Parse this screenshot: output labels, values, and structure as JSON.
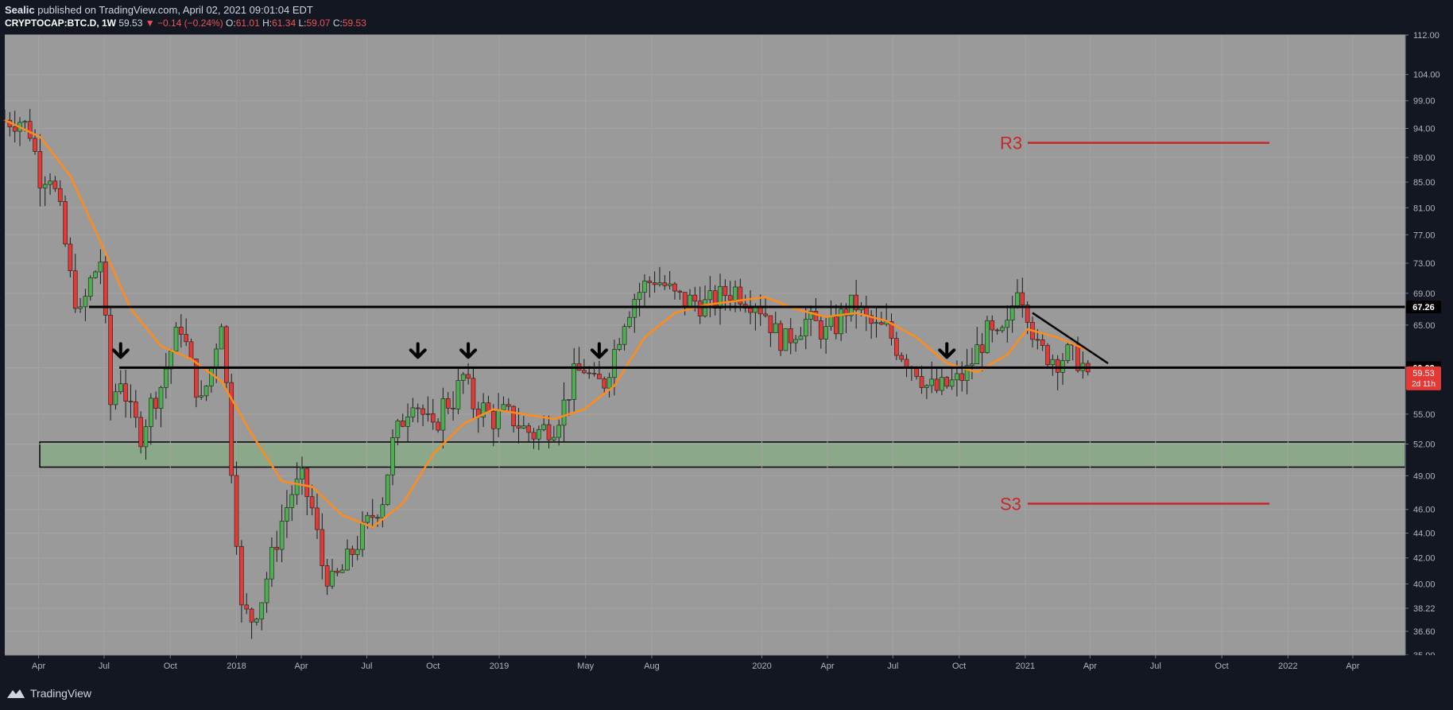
{
  "header": {
    "author": "Sealic",
    "published_text": "published on TradingView.com, April 02, 2021 09:01:04 EDT"
  },
  "ticker": {
    "symbol": "CRYPTOCAP:BTC.D, 1W",
    "last": "59.53",
    "change": "−0.14 (−0.24%)",
    "o_label": "O:",
    "o": "61.01",
    "h_label": "H:",
    "h": "61.34",
    "l_label": "L:",
    "l": "59.07",
    "c_label": "C:",
    "c": "59.53"
  },
  "footer": {
    "brand": "TradingView"
  },
  "colors": {
    "page_bg": "#131722",
    "plot_bg": "#9a9a9a",
    "up_candle": "#4caf50",
    "down_candle": "#e53935",
    "ma_line": "#ff8c1a",
    "level_line": "#000000",
    "zone_fill": "#8ca88a",
    "r_s_color": "#c62828",
    "price_badge": "#e53935"
  },
  "chart_data": {
    "type": "candlestick",
    "symbol": "CRYPTOCAP:BTC.D",
    "interval": "1W",
    "y_scale": "log",
    "ylim": [
      35,
      112
    ],
    "y_ticks": [
      112,
      104,
      99,
      94,
      89,
      85,
      81,
      77,
      73,
      69,
      65,
      60,
      55,
      52,
      49,
      46,
      44,
      42,
      40,
      38.22,
      36.6,
      35
    ],
    "y_tick_labels": [
      "112.00",
      "104.00",
      "99.00",
      "94.00",
      "89.00",
      "85.00",
      "81.00",
      "77.00",
      "73.00",
      "69.00",
      "65.00",
      "60.00",
      "55.00",
      "52.00",
      "49.00",
      "46.00",
      "44.00",
      "42.00",
      "40.00",
      "38.22",
      "36.60",
      "35.00"
    ],
    "x_range": [
      "2017-02-13",
      "2022-06-13"
    ],
    "x_ticks": [
      {
        "date": "2017-04-01",
        "label": "Apr"
      },
      {
        "date": "2017-07-01",
        "label": "Jul"
      },
      {
        "date": "2017-10-01",
        "label": "Oct"
      },
      {
        "date": "2018-01-01",
        "label": "2018"
      },
      {
        "date": "2018-04-01",
        "label": "Apr"
      },
      {
        "date": "2018-07-01",
        "label": "Jul"
      },
      {
        "date": "2018-10-01",
        "label": "Oct"
      },
      {
        "date": "2019-01-01",
        "label": "2019"
      },
      {
        "date": "2019-05-01",
        "label": "May"
      },
      {
        "date": "2019-08-01",
        "label": "Aug"
      },
      {
        "date": "2020-01-01",
        "label": "2020"
      },
      {
        "date": "2020-04-01",
        "label": "Apr"
      },
      {
        "date": "2020-07-01",
        "label": "Jul"
      },
      {
        "date": "2020-10-01",
        "label": "Oct"
      },
      {
        "date": "2021-01-01",
        "label": "2021"
      },
      {
        "date": "2021-04-01",
        "label": "Apr"
      },
      {
        "date": "2021-07-01",
        "label": "Jul"
      },
      {
        "date": "2021-10-01",
        "label": "Oct"
      },
      {
        "date": "2022-01-01",
        "label": "2022"
      },
      {
        "date": "2022-04-01",
        "label": "Apr"
      }
    ],
    "close_series": [
      [
        "2017-02-13",
        95.5
      ],
      [
        "2017-03-06",
        95.5
      ],
      [
        "2017-03-20",
        93.5
      ],
      [
        "2017-04-03",
        86
      ],
      [
        "2017-04-17",
        86.5
      ],
      [
        "2017-05-01",
        80
      ],
      [
        "2017-05-15",
        71
      ],
      [
        "2017-05-29",
        66
      ],
      [
        "2017-06-12",
        70.5
      ],
      [
        "2017-06-26",
        73.5
      ],
      [
        "2017-07-10",
        56
      ],
      [
        "2017-07-24",
        59
      ],
      [
        "2017-08-07",
        55
      ],
      [
        "2017-08-21",
        53
      ],
      [
        "2017-09-04",
        56
      ],
      [
        "2017-09-18",
        58
      ],
      [
        "2017-10-02",
        62
      ],
      [
        "2017-10-16",
        65
      ],
      [
        "2017-10-30",
        60
      ],
      [
        "2017-11-13",
        56
      ],
      [
        "2017-11-27",
        60
      ],
      [
        "2017-12-11",
        66
      ],
      [
        "2017-12-25",
        50
      ],
      [
        "2018-01-08",
        38
      ],
      [
        "2018-01-22",
        37.5
      ],
      [
        "2018-02-05",
        39
      ],
      [
        "2018-02-19",
        42
      ],
      [
        "2018-03-05",
        45
      ],
      [
        "2018-03-19",
        47.5
      ],
      [
        "2018-04-02",
        48.5
      ],
      [
        "2018-04-16",
        46
      ],
      [
        "2018-04-30",
        41.5
      ],
      [
        "2018-05-14",
        40
      ],
      [
        "2018-05-28",
        41
      ],
      [
        "2018-06-11",
        42.5
      ],
      [
        "2018-06-25",
        44
      ],
      [
        "2018-07-09",
        45.5
      ],
      [
        "2018-07-23",
        47
      ],
      [
        "2018-08-06",
        52
      ],
      [
        "2018-08-20",
        54.5
      ],
      [
        "2018-09-03",
        57
      ],
      [
        "2018-09-17",
        55
      ],
      [
        "2018-10-01",
        53
      ],
      [
        "2018-10-15",
        56
      ],
      [
        "2018-10-29",
        56.5
      ],
      [
        "2018-11-12",
        59
      ],
      [
        "2018-11-26",
        56
      ],
      [
        "2018-12-10",
        55.5
      ],
      [
        "2018-12-24",
        54.5
      ],
      [
        "2019-01-07",
        55
      ],
      [
        "2019-01-21",
        54.5
      ],
      [
        "2019-02-04",
        53.5
      ],
      [
        "2019-02-18",
        53
      ],
      [
        "2019-03-04",
        53.5
      ],
      [
        "2019-03-18",
        54
      ],
      [
        "2019-04-01",
        56
      ],
      [
        "2019-04-15",
        59
      ],
      [
        "2019-04-29",
        60
      ],
      [
        "2019-05-13",
        58
      ],
      [
        "2019-05-27",
        58.5
      ],
      [
        "2019-06-10",
        62
      ],
      [
        "2019-06-24",
        66
      ],
      [
        "2019-07-08",
        68.5
      ],
      [
        "2019-07-22",
        70
      ],
      [
        "2019-08-05",
        71
      ],
      [
        "2019-08-19",
        70
      ],
      [
        "2019-09-02",
        68.5
      ],
      [
        "2019-09-16",
        68
      ],
      [
        "2019-09-30",
        68
      ],
      [
        "2019-10-14",
        67.5
      ],
      [
        "2019-10-28",
        68
      ],
      [
        "2019-11-11",
        69
      ],
      [
        "2019-11-25",
        69.5
      ],
      [
        "2019-12-09",
        68.5
      ],
      [
        "2019-12-23",
        68
      ],
      [
        "2020-01-06",
        66.5
      ],
      [
        "2020-01-20",
        64
      ],
      [
        "2020-02-03",
        63
      ],
      [
        "2020-02-17",
        64.5
      ],
      [
        "2020-03-02",
        65.5
      ],
      [
        "2020-03-16",
        65
      ],
      [
        "2020-03-30",
        64
      ],
      [
        "2020-04-13",
        65
      ],
      [
        "2020-04-27",
        67
      ],
      [
        "2020-05-11",
        67.5
      ],
      [
        "2020-05-25",
        65.5
      ],
      [
        "2020-06-08",
        64.5
      ],
      [
        "2020-06-22",
        64.5
      ],
      [
        "2020-07-06",
        62.5
      ],
      [
        "2020-07-20",
        61
      ],
      [
        "2020-08-03",
        60
      ],
      [
        "2020-08-17",
        58
      ],
      [
        "2020-08-31",
        57.5
      ],
      [
        "2020-09-14",
        58
      ],
      [
        "2020-09-28",
        58.5
      ],
      [
        "2020-10-12",
        59.5
      ],
      [
        "2020-10-26",
        62
      ],
      [
        "2020-11-09",
        64
      ],
      [
        "2020-11-23",
        63
      ],
      [
        "2020-12-07",
        64.5
      ],
      [
        "2020-12-21",
        70.5
      ],
      [
        "2021-01-04",
        67
      ],
      [
        "2021-01-18",
        62
      ],
      [
        "2021-02-01",
        61.5
      ],
      [
        "2021-02-15",
        61
      ],
      [
        "2021-03-01",
        61.5
      ],
      [
        "2021-03-15",
        61
      ],
      [
        "2021-03-29",
        59.53
      ]
    ],
    "ma_series": [
      [
        "2017-02-13",
        95.5
      ],
      [
        "2017-04-03",
        92.5
      ],
      [
        "2017-05-15",
        86
      ],
      [
        "2017-06-26",
        76
      ],
      [
        "2017-08-07",
        67
      ],
      [
        "2017-09-18",
        62.5
      ],
      [
        "2017-10-30",
        61
      ],
      [
        "2017-12-11",
        58.5
      ],
      [
        "2018-01-22",
        53
      ],
      [
        "2018-03-05",
        48.5
      ],
      [
        "2018-04-16",
        48
      ],
      [
        "2018-05-28",
        45.5
      ],
      [
        "2018-07-09",
        44.5
      ],
      [
        "2018-08-20",
        46.5
      ],
      [
        "2018-10-01",
        51
      ],
      [
        "2018-11-12",
        54
      ],
      [
        "2018-12-24",
        55.5
      ],
      [
        "2019-02-04",
        55
      ],
      [
        "2019-03-18",
        54.5
      ],
      [
        "2019-04-29",
        55.5
      ],
      [
        "2019-06-10",
        58
      ],
      [
        "2019-07-22",
        63.5
      ],
      [
        "2019-09-02",
        66.5
      ],
      [
        "2019-10-14",
        67.5
      ],
      [
        "2019-11-25",
        68
      ],
      [
        "2020-01-06",
        68.5
      ],
      [
        "2020-02-17",
        67
      ],
      [
        "2020-03-30",
        66
      ],
      [
        "2020-05-11",
        66.5
      ],
      [
        "2020-06-22",
        65.5
      ],
      [
        "2020-08-03",
        63.5
      ],
      [
        "2020-09-14",
        60.5
      ],
      [
        "2020-10-26",
        59.5
      ],
      [
        "2020-12-07",
        61.5
      ],
      [
        "2021-01-04",
        64.5
      ],
      [
        "2021-02-15",
        63.5
      ],
      [
        "2021-03-29",
        62
      ]
    ],
    "annotations": {
      "resistance_line": {
        "value": 67.26,
        "label": "67.26"
      },
      "support_line": {
        "value": 60.02,
        "label": "60.02"
      },
      "demand_zone": {
        "low": 49.8,
        "high": 52.2
      },
      "r3": {
        "label": "R3",
        "value": 91.5
      },
      "s3": {
        "label": "S3",
        "value": 46.5
      },
      "trendline": {
        "from": [
          "2021-01-11",
          66.5
        ],
        "to": [
          "2021-04-26",
          60.5
        ]
      },
      "arrows": [
        "2017-07-24",
        "2018-09-10",
        "2018-11-19",
        "2019-05-20",
        "2020-09-14"
      ]
    },
    "last_price": {
      "value": "59.53",
      "countdown": "2d 11h"
    }
  }
}
